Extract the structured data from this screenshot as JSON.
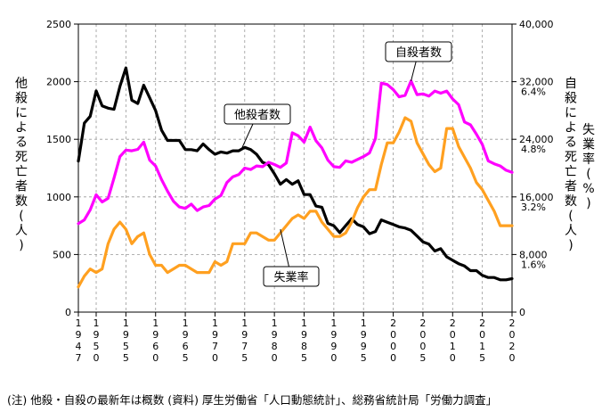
{
  "chart_data": {
    "type": "line",
    "title": "",
    "xlabel": "",
    "ylabel_left": "他殺による死亡者数(人)",
    "ylabel_right_main": "自殺による死亡者数(人)",
    "ylabel_right_rate": "失業率(%)",
    "xlim": [
      1947,
      2020
    ],
    "x_ticks": [
      1947,
      1950,
      1955,
      1960,
      1965,
      1970,
      1975,
      1980,
      1985,
      1990,
      1995,
      2000,
      2005,
      2010,
      2015,
      2020
    ],
    "x_tick_labels": [
      "1947",
      "1950",
      "1955",
      "1960",
      "1965",
      "1970",
      "1975",
      "1980",
      "1985",
      "1990",
      "1995",
      "2000",
      "2005",
      "2010",
      "2015",
      "2020"
    ],
    "ylim_left": [
      0,
      2500
    ],
    "y_ticks_left": [
      0,
      500,
      1000,
      1500,
      2000,
      2500
    ],
    "ylim_right": [
      0,
      40000
    ],
    "y_ticks_right": [
      "0",
      "8,000",
      "16,000",
      "24,000",
      "32,000",
      "40,000"
    ],
    "rate_ticks": [
      {
        "label": "1.6%",
        "value": 1.6
      },
      {
        "label": "3.2%",
        "value": 3.2
      },
      {
        "label": "4.8%",
        "value": 4.8
      },
      {
        "label": "6.4%",
        "value": 6.4
      }
    ],
    "series": [
      {
        "name": "他殺者数",
        "color": "#000000",
        "axis": "left",
        "x": [
          1947,
          1948,
          1949,
          1950,
          1951,
          1952,
          1953,
          1954,
          1955,
          1956,
          1957,
          1958,
          1959,
          1960,
          1961,
          1962,
          1963,
          1964,
          1965,
          1966,
          1967,
          1968,
          1969,
          1970,
          1971,
          1972,
          1973,
          1974,
          1975,
          1976,
          1977,
          1978,
          1979,
          1980,
          1981,
          1982,
          1983,
          1984,
          1985,
          1986,
          1987,
          1988,
          1989,
          1990,
          1991,
          1992,
          1993,
          1994,
          1995,
          1996,
          1997,
          1998,
          1999,
          2000,
          2001,
          2002,
          2003,
          2004,
          2005,
          2006,
          2007,
          2008,
          2009,
          2010,
          2011,
          2012,
          2013,
          2014,
          2015,
          2016,
          2017,
          2018,
          2019,
          2020
        ],
        "y": [
          1310,
          1640,
          1700,
          1920,
          1790,
          1770,
          1760,
          1960,
          2120,
          1840,
          1810,
          1970,
          1860,
          1750,
          1580,
          1490,
          1490,
          1490,
          1410,
          1410,
          1400,
          1460,
          1410,
          1370,
          1390,
          1380,
          1400,
          1400,
          1430,
          1410,
          1370,
          1300,
          1280,
          1200,
          1110,
          1150,
          1110,
          1140,
          1020,
          1020,
          920,
          910,
          770,
          750,
          690,
          750,
          810,
          760,
          740,
          680,
          700,
          800,
          780,
          760,
          740,
          730,
          710,
          660,
          610,
          590,
          530,
          550,
          480,
          450,
          420,
          400,
          360,
          360,
          320,
          300,
          300,
          280,
          280,
          290
        ]
      },
      {
        "name": "自殺者数",
        "color": "#ff00ff",
        "axis": "right",
        "x": [
          1947,
          1948,
          1949,
          1950,
          1951,
          1952,
          1953,
          1954,
          1955,
          1956,
          1957,
          1958,
          1959,
          1960,
          1961,
          1962,
          1963,
          1964,
          1965,
          1966,
          1967,
          1968,
          1969,
          1970,
          1971,
          1972,
          1973,
          1974,
          1975,
          1976,
          1977,
          1978,
          1979,
          1980,
          1981,
          1982,
          1983,
          1984,
          1985,
          1986,
          1987,
          1988,
          1989,
          1990,
          1991,
          1992,
          1993,
          1994,
          1995,
          1996,
          1997,
          1998,
          1999,
          2000,
          2001,
          2002,
          2003,
          2004,
          2005,
          2006,
          2007,
          2008,
          2009,
          2010,
          2011,
          2012,
          2013,
          2014,
          2015,
          2016,
          2017,
          2018,
          2019,
          2020
        ],
        "y": [
          12300,
          12800,
          14200,
          16300,
          15300,
          15800,
          18600,
          21600,
          22500,
          22400,
          22600,
          23600,
          21100,
          20300,
          18400,
          16800,
          15400,
          14600,
          14400,
          15000,
          14100,
          14600,
          14800,
          15700,
          16200,
          18000,
          18800,
          19100,
          20000,
          19800,
          20300,
          20200,
          20800,
          20500,
          20100,
          20700,
          24900,
          24500,
          23600,
          25700,
          23800,
          22800,
          21100,
          20200,
          20100,
          21000,
          20800,
          21200,
          21600,
          22100,
          24100,
          31800,
          31600,
          30900,
          29900,
          30100,
          32100,
          30200,
          30300,
          30000,
          30700,
          30400,
          30700,
          29600,
          28800,
          26400,
          26000,
          24700,
          23300,
          21000,
          20600,
          20300,
          19700,
          19400
        ]
      },
      {
        "name": "失業率",
        "color": "#ffa020",
        "axis": "right_rate",
        "x": [
          1947,
          1948,
          1949,
          1950,
          1951,
          1952,
          1953,
          1954,
          1955,
          1956,
          1957,
          1958,
          1959,
          1960,
          1961,
          1962,
          1963,
          1964,
          1965,
          1966,
          1967,
          1968,
          1969,
          1970,
          1971,
          1972,
          1973,
          1974,
          1975,
          1976,
          1977,
          1978,
          1979,
          1980,
          1981,
          1982,
          1983,
          1984,
          1985,
          1986,
          1987,
          1988,
          1989,
          1990,
          1991,
          1992,
          1993,
          1994,
          1995,
          1996,
          1997,
          1998,
          1999,
          2000,
          2001,
          2002,
          2003,
          2004,
          2005,
          2006,
          2007,
          2008,
          2009,
          2010,
          2011,
          2012,
          2013,
          2014,
          2015,
          2016,
          2017,
          2018,
          2019,
          2020
        ],
        "y": [
          0.7,
          1.0,
          1.2,
          1.1,
          1.2,
          1.9,
          2.3,
          2.5,
          2.3,
          1.9,
          2.1,
          2.2,
          1.6,
          1.3,
          1.3,
          1.1,
          1.2,
          1.3,
          1.3,
          1.2,
          1.1,
          1.1,
          1.1,
          1.4,
          1.3,
          1.4,
          1.9,
          1.9,
          1.9,
          2.2,
          2.2,
          2.1,
          2.0,
          2.0,
          2.2,
          2.4,
          2.6,
          2.7,
          2.6,
          2.8,
          2.8,
          2.5,
          2.3,
          2.1,
          2.1,
          2.2,
          2.5,
          2.9,
          3.2,
          3.4,
          3.4,
          4.1,
          4.7,
          4.7,
          5.0,
          5.4,
          5.3,
          4.7,
          4.4,
          4.1,
          3.9,
          4.0,
          5.1,
          5.1,
          4.6,
          4.3,
          4.0,
          3.6,
          3.4,
          3.1,
          2.8,
          2.4,
          2.4,
          2.4
        ]
      }
    ],
    "annotations": {
      "homicide": "他殺者数",
      "suicide": "自殺者数",
      "unemployment": "失業率"
    },
    "footnote": "(注) 他殺・自殺の最新年は概数  (資料) 厚生労働省「人口動態統計」、総務省統計局「労働力調査」"
  }
}
